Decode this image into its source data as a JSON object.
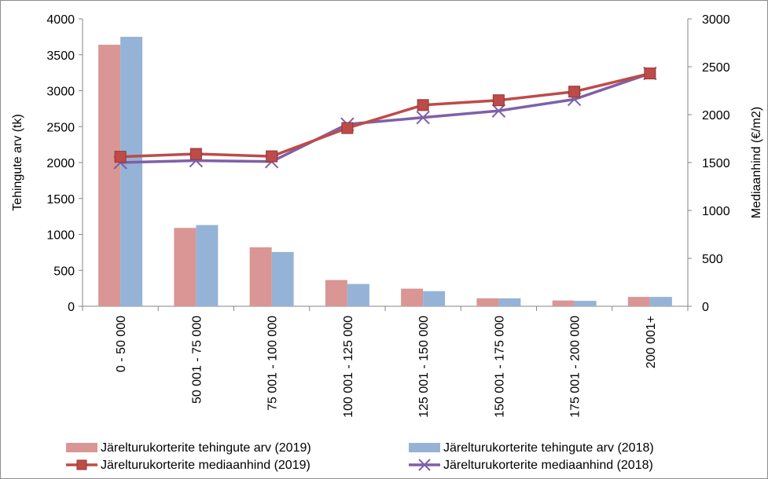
{
  "chart_data": {
    "type": "bar",
    "categories": [
      "0 - 50 000",
      "50 001 - 75 000",
      "75 001 - 100 000",
      "100 001 - 125 000",
      "125 001 - 150 000",
      "150 001 - 175 000",
      "175 001 - 200 000",
      "200 001+"
    ],
    "series": [
      {
        "name": "Järelturukorterite tehingute arv (2019)",
        "type": "bar",
        "axis": "left",
        "color": "#d99694",
        "values": [
          3640,
          1090,
          820,
          365,
          245,
          110,
          80,
          130
        ]
      },
      {
        "name": "Järelturukorterite tehingute arv (2018)",
        "type": "bar",
        "axis": "left",
        "color": "#95b3d7",
        "values": [
          3750,
          1130,
          755,
          310,
          210,
          110,
          75,
          130
        ]
      },
      {
        "name": "Järelturukorterite mediaanhind (2019)",
        "type": "line",
        "marker": "square",
        "axis": "right",
        "color": "#be4b48",
        "values": [
          1560,
          1590,
          1565,
          1860,
          2100,
          2150,
          2240,
          2430
        ]
      },
      {
        "name": "Järelturukorterite mediaanhind (2018)",
        "type": "line",
        "marker": "x",
        "axis": "right",
        "color": "#7f60a8",
        "values": [
          1500,
          1520,
          1510,
          1900,
          1970,
          2040,
          2160,
          2430
        ]
      }
    ],
    "ylabel": "Tehingute arv (tk)",
    "y2label": "Mediaanhind (€/m2)",
    "ylim": [
      0,
      4000
    ],
    "y2lim": [
      0,
      3000
    ],
    "yticks": [
      "0",
      "500",
      "1000",
      "1500",
      "2000",
      "2500",
      "3000",
      "3500",
      "4000"
    ],
    "y2ticks": [
      "0",
      "500",
      "1000",
      "1500",
      "2000",
      "2500",
      "3000"
    ],
    "grid": false,
    "legend_position": "bottom"
  }
}
